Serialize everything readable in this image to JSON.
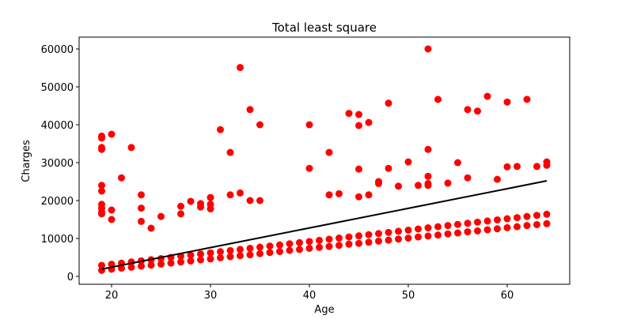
{
  "chart_data": {
    "type": "scatter",
    "title": "Total least square",
    "x_label": "Age",
    "y_label": "Charges",
    "xlim": [
      16.72,
      66.32
    ],
    "ylim": [
      -2083,
      63125
    ],
    "xticks": [
      20,
      30,
      40,
      50,
      60
    ],
    "yticks": [
      0,
      10000,
      20000,
      30000,
      40000,
      50000,
      60000
    ],
    "series": [
      {
        "type": "scatter",
        "color": "#ff0000",
        "x": [
          19,
          19,
          19,
          19,
          19,
          19,
          19,
          19,
          19,
          19,
          20,
          20,
          20,
          21,
          22,
          23,
          23,
          23,
          24,
          25,
          27,
          27,
          28,
          29,
          29,
          30,
          30,
          30,
          31,
          32,
          32,
          33,
          33,
          34,
          34,
          35,
          35,
          40,
          40,
          42,
          42,
          43,
          44,
          45,
          45,
          45,
          45,
          46,
          46,
          47,
          47,
          48,
          48,
          49,
          50,
          51,
          52,
          52,
          52,
          52,
          52,
          53,
          54,
          55,
          56,
          56,
          57,
          58,
          59,
          60,
          60,
          61,
          62,
          63,
          64,
          64,
          19,
          19,
          20,
          20,
          21,
          21,
          22,
          22,
          23,
          23,
          24,
          24,
          25,
          25,
          26,
          26,
          27,
          27,
          28,
          28,
          29,
          29,
          30,
          30,
          31,
          31,
          32,
          32,
          33,
          33,
          34,
          34,
          35,
          35,
          36,
          36,
          37,
          37,
          38,
          38,
          39,
          39,
          40,
          40,
          41,
          41,
          42,
          42,
          43,
          43,
          44,
          44,
          45,
          45,
          46,
          46,
          47,
          47,
          48,
          48,
          49,
          49,
          50,
          50,
          51,
          51,
          52,
          52,
          53,
          53,
          54,
          54,
          55,
          55,
          56,
          56,
          57,
          57,
          58,
          58,
          59,
          59,
          60,
          60,
          61,
          61,
          62,
          62,
          63,
          63,
          64,
          64
        ],
        "values": [
          36500,
          37000,
          33500,
          34000,
          24000,
          22500,
          19000,
          18000,
          17000,
          16500,
          37500,
          17500,
          15000,
          26000,
          34000,
          21500,
          18000,
          14500,
          12700,
          15800,
          18500,
          16500,
          19800,
          19200,
          18300,
          20800,
          19000,
          17800,
          38700,
          32700,
          21500,
          55100,
          22000,
          44000,
          20000,
          40000,
          20000,
          40000,
          28500,
          32700,
          21500,
          21800,
          43000,
          42700,
          39800,
          28300,
          21000,
          40600,
          21500,
          25000,
          24500,
          45700,
          28500,
          23800,
          30200,
          24000,
          60000,
          33500,
          26400,
          24500,
          24000,
          46700,
          24600,
          30000,
          44000,
          26000,
          43600,
          47500,
          25600,
          46000,
          28900,
          29000,
          46700,
          29000,
          30200,
          29300,
          1600,
          2900,
          1900,
          3200,
          2150,
          3500,
          2400,
          3800,
          2700,
          4100,
          2950,
          4400,
          3250,
          4700,
          3500,
          5000,
          3800,
          5300,
          4050,
          5600,
          4350,
          5900,
          4600,
          6200,
          4900,
          6500,
          5200,
          6800,
          5450,
          7100,
          5700,
          7400,
          6000,
          7700,
          6300,
          8000,
          6550,
          8300,
          6850,
          8600,
          7100,
          8900,
          7400,
          9200,
          7650,
          9500,
          7900,
          9800,
          8200,
          10100,
          8500,
          10400,
          8700,
          10700,
          9000,
          11000,
          9300,
          11300,
          9550,
          11600,
          9850,
          11900,
          10100,
          12200,
          10400,
          12500,
          10650,
          12800,
          10900,
          13100,
          11200,
          13400,
          11450,
          13700,
          11750,
          14000,
          12000,
          14300,
          12300,
          14600,
          12550,
          14900,
          12850,
          15200,
          13100,
          15500,
          13400,
          15800,
          13650,
          16100,
          13900,
          16400
        ]
      },
      {
        "type": "line",
        "color": "#000000",
        "x": [
          19,
          64
        ],
        "values": [
          1900,
          25200
        ]
      }
    ]
  }
}
